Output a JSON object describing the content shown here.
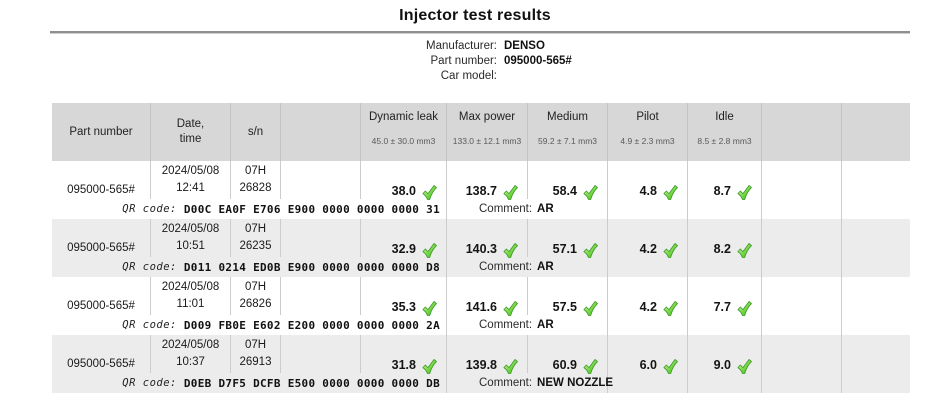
{
  "page": {
    "title": "Injector test results"
  },
  "info": {
    "rows": [
      {
        "label": "Manufacturer:",
        "value": "DENSO"
      },
      {
        "label": "Part number:",
        "value": "095000-565#"
      },
      {
        "label": "Car model:",
        "value": ""
      }
    ]
  },
  "table": {
    "qr_label": "QR code:",
    "comment_label": "Comment:",
    "check_icon": "green-check-icon",
    "check_color": "#2eb411",
    "header_bg": "#d7d7d7",
    "alt_row_bg": "#ececec",
    "columns": [
      {
        "key": "part-number",
        "label": "Part number",
        "tolerance": ""
      },
      {
        "key": "date-time",
        "label": "Date,\ntime",
        "tolerance": ""
      },
      {
        "key": "sn",
        "label": "s/n",
        "tolerance": ""
      },
      {
        "key": "blank-1",
        "label": "",
        "tolerance": ""
      },
      {
        "key": "dynamic-leak",
        "label": "Dynamic leak",
        "tolerance": "45.0 ± 30.0 mm3"
      },
      {
        "key": "max-power",
        "label": "Max power",
        "tolerance": "133.0 ± 12.1 mm3"
      },
      {
        "key": "medium",
        "label": "Medium",
        "tolerance": "59.2 ± 7.1 mm3"
      },
      {
        "key": "pilot",
        "label": "Pilot",
        "tolerance": "4.9 ± 2.3 mm3"
      },
      {
        "key": "idle",
        "label": "Idle",
        "tolerance": "8.5 ± 2.8 mm3"
      },
      {
        "key": "blank-2",
        "label": "",
        "tolerance": ""
      },
      {
        "key": "blank-3",
        "label": "",
        "tolerance": ""
      }
    ],
    "rows": [
      {
        "part_number": "095000-565#",
        "date": "2024/05/08",
        "time": "12:41",
        "sn_prefix": "07H",
        "sn": "26828",
        "values": [
          "38.0",
          "138.7",
          "58.4",
          "4.8",
          "8.7"
        ],
        "qr_code": "D00C EA0F E706 E900 0000 0000 0000 31",
        "comment": "AR"
      },
      {
        "part_number": "095000-565#",
        "date": "2024/05/08",
        "time": "10:51",
        "sn_prefix": "07H",
        "sn": "26235",
        "values": [
          "32.9",
          "140.3",
          "57.1",
          "4.2",
          "8.2"
        ],
        "qr_code": "D011 0214 ED0B E900 0000 0000 0000 D8",
        "comment": "AR"
      },
      {
        "part_number": "095000-565#",
        "date": "2024/05/08",
        "time": "11:01",
        "sn_prefix": "07H",
        "sn": "26826",
        "values": [
          "35.3",
          "141.6",
          "57.5",
          "4.2",
          "7.7"
        ],
        "qr_code": "D009 FB0E E602 E200 0000 0000 0000 2A",
        "comment": "AR"
      },
      {
        "part_number": "095000-565#",
        "date": "2024/05/08",
        "time": "10:37",
        "sn_prefix": "07H",
        "sn": "26913",
        "values": [
          "31.8",
          "139.8",
          "60.9",
          "6.0",
          "9.0"
        ],
        "qr_code": "D0EB D7F5 DCFB E500 0000 0000 0000 DB",
        "comment": "NEW NOZZLE"
      }
    ]
  }
}
